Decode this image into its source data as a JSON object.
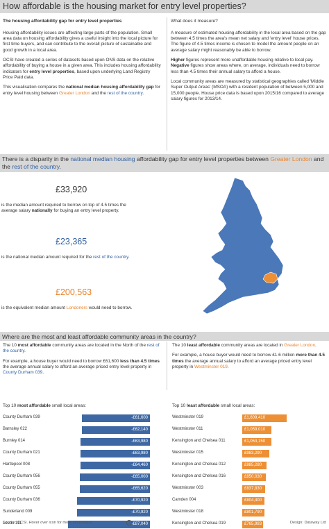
{
  "title": "How affordable is the housing market for entry level properties?",
  "intro": {
    "heading": "The housing affordability gap for entry level properties",
    "p1": "Housing affordability issues are affecting large parts of the population.  Small area data on housing affordability gives a useful insight into the local picture for first time buyers, and can contribute to the overall picture of sustainable and good growth in a local area.",
    "p2_a": "OCSI have created a series of datasets based upon ONS data on the relative affordability of buying a house in a given area. This includes housing affordability indicators for ",
    "p2_b": "entry level properties",
    "p2_c": ", based upon underlying Land Registry Price Paid data.",
    "p3_a": "This visualisation compares the ",
    "p3_b": "national median housing affordability gap",
    "p3_c": " for entry level housing between ",
    "p3_london": "Greater London",
    "p3_and": " and the ",
    "p3_rest": "rest of the country",
    "p3_end": "."
  },
  "measure": {
    "heading": "What does it measure?",
    "p1": "A measure of estimated housing affordability in the local area based on the gap between 4.5 times the area's mean net salary and 'entry level' house prices. The figure of 4.5 times income is chosen to model the amount people on an average salary might reasonably be able to borrow.",
    "p2_a": "Higher",
    "p2_b": " figures represent more unaffordable housing relative to local pay.  ",
    "p2_c": "Negative",
    "p2_d": " figures show areas where, on average, individuals need to borrow less than 4.5 times their annual salary to afford a house.",
    "p3": "Local community areas are measured by statistical geographies called 'Middle Super Output Areas' (MSOA) with a resident population of between 5,000 and 15,000 people. House price data is based upon 2015/16 compared to average salary figures for 2013/14."
  },
  "disparity": {
    "title_a": "There is a disparity in the ",
    "title_b": "national median housing",
    "title_c": " affordability gap for entry level properties between ",
    "title_london": "Greater London",
    "title_and": " and the ",
    "title_rest": "rest of the country",
    "title_end": ".",
    "stat1_value": "£33,920",
    "stat1_desc_a": "is the median amount required to borrow on top of 4.5 times the average salary ",
    "stat1_desc_b": "nationally",
    "stat1_desc_c": " for buying an entry level property.",
    "stat2_value": "£23,365",
    "stat2_desc_a": "is the national median amount required for the ",
    "stat2_desc_b": "rest of the country",
    "stat2_desc_c": ".",
    "stat3_value": "£200,563",
    "stat3_desc_a": "is the equivalent median amount ",
    "stat3_desc_b": "Londoners",
    "stat3_desc_c": " would need to borrow."
  },
  "areas": {
    "title": "Where are the most and least affordable community areas in the country?",
    "most_p1_a": "The 10 ",
    "most_p1_b": "most affordable",
    "most_p1_c": " community areas are located in the North of the ",
    "most_p1_d": "rest of the country",
    "most_p1_e": ".",
    "most_p2_a": "For example, a house buyer would need to borrow £61,600 ",
    "most_p2_b": "less than 4.5 times",
    "most_p2_c": " the average annual salary to afford an average priced entry level property in ",
    "most_p2_d": "County Durham 039",
    "most_p2_e": ".",
    "least_p1_a": "The 10 ",
    "least_p1_b": "least affordable",
    "least_p1_c": " community areas are located in ",
    "least_p1_d": "Greater London",
    "least_p1_e": ".",
    "least_p2_a": "For example, a house buyer would need to borrow £1.6 million ",
    "least_p2_b": "more than 4.5 times",
    "least_p2_c": " the average annual salary to afford an average priced entry level property in ",
    "least_p2_d": "Westminster 019",
    "least_p2_e": ".",
    "most_list_title_a": "Top 10 ",
    "most_list_title_b": "most affordable",
    "most_list_title_c": " small local areas:",
    "least_list_title_a": "Top 10 ",
    "least_list_title_b": "least affordable",
    "least_list_title_c": " small local areas:",
    "most_list": [
      {
        "name": "County Durham 039",
        "label": "-£61,600",
        "value": -61600
      },
      {
        "name": "Barnsley 022",
        "label": "-£62,140",
        "value": -62140
      },
      {
        "name": "Burnley 014",
        "label": "-£63,980",
        "value": -63980
      },
      {
        "name": "County Durham 021",
        "label": "-£63,980",
        "value": -63980
      },
      {
        "name": "Hartlepool 008",
        "label": "-£64,460",
        "value": -64460
      },
      {
        "name": "County Durham 056",
        "label": "-£65,000",
        "value": -65000
      },
      {
        "name": "County Durham 055",
        "label": "-£65,620",
        "value": -65620
      },
      {
        "name": "County Durham 036",
        "label": "-£70,920",
        "value": -70920
      },
      {
        "name": "Sunderland 009",
        "label": "-£70,920",
        "value": -70920
      },
      {
        "name": "Leeds 111",
        "label": "-£87,040",
        "value": -87040
      }
    ],
    "least_list": [
      {
        "name": "Westminster 019",
        "label": "£1,609,410",
        "value": 1609410
      },
      {
        "name": "Westminster 011",
        "label": "£1,059,010",
        "value": 1059010
      },
      {
        "name": "Kensington and Chelsea 011",
        "label": "£1,053,150",
        "value": 1053150
      },
      {
        "name": "Westminster 015",
        "label": "£983,290",
        "value": 983290
      },
      {
        "name": "Kensington and Chelsea 012",
        "label": "£885,280",
        "value": 885280
      },
      {
        "name": "Kensington and Chelsea 016",
        "label": "£850,030",
        "value": 850030
      },
      {
        "name": "Westminster 003",
        "label": "£837,830",
        "value": 837830
      },
      {
        "name": "Camden 004",
        "label": "£804,400",
        "value": 804400
      },
      {
        "name": "Westminster 018",
        "label": "£801,790",
        "value": 801790
      },
      {
        "name": "Kensington and Chelsea 019",
        "label": "£765,983",
        "value": 765983
      }
    ]
  },
  "footer": {
    "source": "Source:  OCSI.  Hover over icon for more information:",
    "info_icon": "i",
    "design": "Design: Dataway Ltd"
  },
  "colors": {
    "blue": "#3e68a3",
    "orange": "#ec8f35",
    "london": "#e8822a",
    "map": "#4a78b8"
  }
}
